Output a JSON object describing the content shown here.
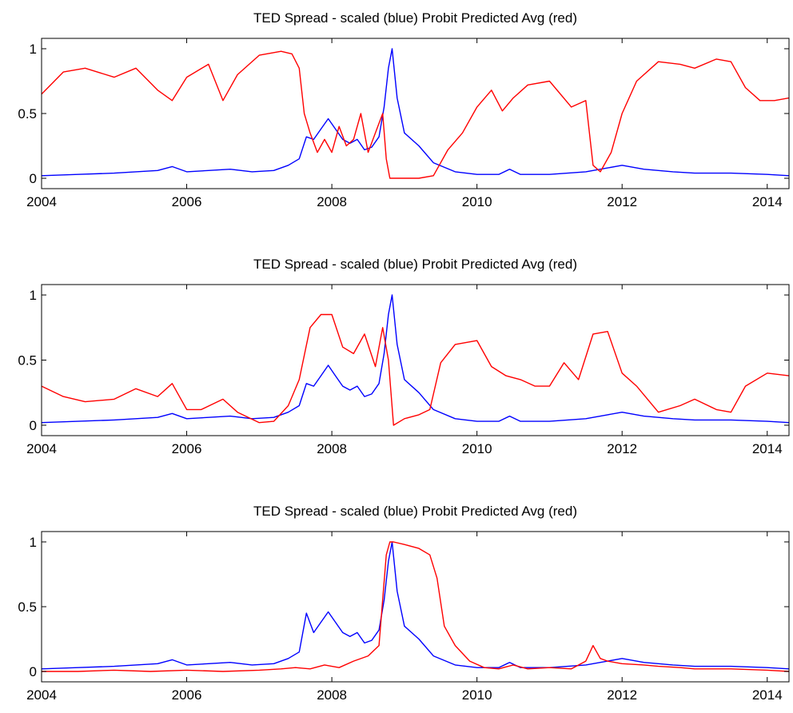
{
  "chart_data": [
    {
      "type": "line",
      "title": "TED Spread - scaled (blue) Probit Predicted Avg (red)",
      "xlabel": "",
      "ylabel": "",
      "xlim": [
        2004,
        2014.3
      ],
      "ylim": [
        -0.08,
        1.08
      ],
      "x_ticks": [
        2004,
        2006,
        2008,
        2010,
        2012,
        2014
      ],
      "y_ticks": [
        0,
        0.5,
        1
      ],
      "y_tick_labels": [
        "0",
        "0.5",
        "1"
      ],
      "grid": false,
      "series": [
        {
          "color": "#0000ff",
          "x": [
            2004.0,
            2004.5,
            2005.0,
            2005.3,
            2005.6,
            2005.8,
            2006.0,
            2006.3,
            2006.6,
            2006.9,
            2007.2,
            2007.4,
            2007.55,
            2007.65,
            2007.75,
            2007.85,
            2007.95,
            2008.05,
            2008.15,
            2008.25,
            2008.35,
            2008.45,
            2008.55,
            2008.65,
            2008.72,
            2008.78,
            2008.83,
            2008.9,
            2009.0,
            2009.2,
            2009.4,
            2009.7,
            2010.0,
            2010.3,
            2010.45,
            2010.6,
            2011.0,
            2011.5,
            2011.8,
            2012.0,
            2012.3,
            2012.7,
            2013.0,
            2013.5,
            2014.0,
            2014.3
          ],
          "y": [
            0.02,
            0.03,
            0.04,
            0.05,
            0.06,
            0.09,
            0.05,
            0.06,
            0.07,
            0.05,
            0.06,
            0.1,
            0.15,
            0.32,
            0.3,
            0.38,
            0.46,
            0.38,
            0.3,
            0.27,
            0.3,
            0.22,
            0.24,
            0.32,
            0.55,
            0.85,
            1.0,
            0.62,
            0.35,
            0.25,
            0.12,
            0.05,
            0.03,
            0.03,
            0.07,
            0.03,
            0.03,
            0.05,
            0.08,
            0.1,
            0.07,
            0.05,
            0.04,
            0.04,
            0.03,
            0.02
          ]
        },
        {
          "color": "#ff0000",
          "x": [
            2004.0,
            2004.3,
            2004.6,
            2005.0,
            2005.3,
            2005.6,
            2005.8,
            2006.0,
            2006.3,
            2006.5,
            2006.7,
            2007.0,
            2007.3,
            2007.45,
            2007.55,
            2007.62,
            2007.7,
            2007.8,
            2007.9,
            2008.0,
            2008.1,
            2008.2,
            2008.3,
            2008.4,
            2008.5,
            2008.6,
            2008.7,
            2008.75,
            2008.8,
            2009.0,
            2009.2,
            2009.4,
            2009.6,
            2009.8,
            2010.0,
            2010.2,
            2010.35,
            2010.5,
            2010.7,
            2011.0,
            2011.3,
            2011.5,
            2011.6,
            2011.7,
            2011.85,
            2012.0,
            2012.2,
            2012.5,
            2012.8,
            2013.0,
            2013.3,
            2013.5,
            2013.7,
            2013.9,
            2014.1,
            2014.3
          ],
          "y": [
            0.65,
            0.82,
            0.85,
            0.78,
            0.85,
            0.68,
            0.6,
            0.78,
            0.88,
            0.6,
            0.8,
            0.95,
            0.98,
            0.96,
            0.85,
            0.5,
            0.35,
            0.2,
            0.3,
            0.2,
            0.4,
            0.25,
            0.3,
            0.5,
            0.2,
            0.35,
            0.5,
            0.15,
            0.0,
            0.0,
            0.0,
            0.02,
            0.22,
            0.35,
            0.55,
            0.68,
            0.52,
            0.62,
            0.72,
            0.75,
            0.55,
            0.6,
            0.1,
            0.05,
            0.2,
            0.5,
            0.75,
            0.9,
            0.88,
            0.85,
            0.92,
            0.9,
            0.7,
            0.6,
            0.6,
            0.62
          ]
        }
      ]
    },
    {
      "type": "line",
      "title": "TED Spread - scaled (blue) Probit Predicted Avg (red)",
      "xlabel": "",
      "ylabel": "",
      "xlim": [
        2004,
        2014.3
      ],
      "ylim": [
        -0.08,
        1.08
      ],
      "x_ticks": [
        2004,
        2006,
        2008,
        2010,
        2012,
        2014
      ],
      "y_ticks": [
        0,
        0.5,
        1
      ],
      "y_tick_labels": [
        "0",
        "0.5",
        "1"
      ],
      "grid": false,
      "series": [
        {
          "color": "#0000ff",
          "x": [
            2004.0,
            2004.5,
            2005.0,
            2005.3,
            2005.6,
            2005.8,
            2006.0,
            2006.3,
            2006.6,
            2006.9,
            2007.2,
            2007.4,
            2007.55,
            2007.65,
            2007.75,
            2007.85,
            2007.95,
            2008.05,
            2008.15,
            2008.25,
            2008.35,
            2008.45,
            2008.55,
            2008.65,
            2008.72,
            2008.78,
            2008.83,
            2008.9,
            2009.0,
            2009.2,
            2009.4,
            2009.7,
            2010.0,
            2010.3,
            2010.45,
            2010.6,
            2011.0,
            2011.5,
            2011.8,
            2012.0,
            2012.3,
            2012.7,
            2013.0,
            2013.5,
            2014.0,
            2014.3
          ],
          "y": [
            0.02,
            0.03,
            0.04,
            0.05,
            0.06,
            0.09,
            0.05,
            0.06,
            0.07,
            0.05,
            0.06,
            0.1,
            0.15,
            0.32,
            0.3,
            0.38,
            0.46,
            0.38,
            0.3,
            0.27,
            0.3,
            0.22,
            0.24,
            0.32,
            0.55,
            0.85,
            1.0,
            0.62,
            0.35,
            0.25,
            0.12,
            0.05,
            0.03,
            0.03,
            0.07,
            0.03,
            0.03,
            0.05,
            0.08,
            0.1,
            0.07,
            0.05,
            0.04,
            0.04,
            0.03,
            0.02
          ]
        },
        {
          "color": "#ff0000",
          "x": [
            2004.0,
            2004.3,
            2004.6,
            2005.0,
            2005.3,
            2005.6,
            2005.8,
            2006.0,
            2006.2,
            2006.5,
            2006.7,
            2007.0,
            2007.2,
            2007.4,
            2007.55,
            2007.7,
            2007.85,
            2008.0,
            2008.15,
            2008.3,
            2008.45,
            2008.6,
            2008.7,
            2008.78,
            2008.85,
            2009.0,
            2009.2,
            2009.35,
            2009.5,
            2009.7,
            2010.0,
            2010.2,
            2010.4,
            2010.6,
            2010.8,
            2011.0,
            2011.2,
            2011.4,
            2011.6,
            2011.8,
            2012.0,
            2012.2,
            2012.5,
            2012.8,
            2013.0,
            2013.3,
            2013.5,
            2013.7,
            2014.0,
            2014.3
          ],
          "y": [
            0.3,
            0.22,
            0.18,
            0.2,
            0.28,
            0.22,
            0.32,
            0.12,
            0.12,
            0.2,
            0.1,
            0.02,
            0.03,
            0.15,
            0.35,
            0.75,
            0.85,
            0.85,
            0.6,
            0.55,
            0.7,
            0.45,
            0.75,
            0.5,
            0.0,
            0.05,
            0.08,
            0.12,
            0.48,
            0.62,
            0.65,
            0.45,
            0.38,
            0.35,
            0.3,
            0.3,
            0.48,
            0.35,
            0.7,
            0.72,
            0.4,
            0.3,
            0.1,
            0.15,
            0.2,
            0.12,
            0.1,
            0.3,
            0.4,
            0.38
          ]
        }
      ]
    },
    {
      "type": "line",
      "title": "TED Spread - scaled (blue) Probit Predicted Avg (red)",
      "xlabel": "",
      "ylabel": "",
      "xlim": [
        2004,
        2014.3
      ],
      "ylim": [
        -0.08,
        1.08
      ],
      "x_ticks": [
        2004,
        2006,
        2008,
        2010,
        2012,
        2014
      ],
      "y_ticks": [
        0,
        0.5,
        1
      ],
      "y_tick_labels": [
        "0",
        "0.5",
        "1"
      ],
      "grid": false,
      "series": [
        {
          "color": "#0000ff",
          "x": [
            2004.0,
            2004.5,
            2005.0,
            2005.3,
            2005.6,
            2005.8,
            2006.0,
            2006.3,
            2006.6,
            2006.9,
            2007.2,
            2007.4,
            2007.55,
            2007.65,
            2007.75,
            2007.85,
            2007.95,
            2008.05,
            2008.15,
            2008.25,
            2008.35,
            2008.45,
            2008.55,
            2008.65,
            2008.72,
            2008.78,
            2008.83,
            2008.9,
            2009.0,
            2009.2,
            2009.4,
            2009.7,
            2010.0,
            2010.3,
            2010.45,
            2010.6,
            2011.0,
            2011.5,
            2011.8,
            2012.0,
            2012.3,
            2012.7,
            2013.0,
            2013.5,
            2014.0,
            2014.3
          ],
          "y": [
            0.02,
            0.03,
            0.04,
            0.05,
            0.06,
            0.09,
            0.05,
            0.06,
            0.07,
            0.05,
            0.06,
            0.1,
            0.15,
            0.45,
            0.3,
            0.38,
            0.46,
            0.38,
            0.3,
            0.27,
            0.3,
            0.22,
            0.24,
            0.32,
            0.55,
            0.85,
            1.0,
            0.62,
            0.35,
            0.25,
            0.12,
            0.05,
            0.03,
            0.03,
            0.07,
            0.03,
            0.03,
            0.05,
            0.08,
            0.1,
            0.07,
            0.05,
            0.04,
            0.04,
            0.03,
            0.02
          ]
        },
        {
          "color": "#ff0000",
          "x": [
            2004.0,
            2004.5,
            2005.0,
            2005.5,
            2006.0,
            2006.5,
            2007.0,
            2007.3,
            2007.5,
            2007.7,
            2007.9,
            2008.1,
            2008.3,
            2008.5,
            2008.65,
            2008.75,
            2008.8,
            2008.85,
            2009.0,
            2009.2,
            2009.35,
            2009.45,
            2009.55,
            2009.7,
            2009.9,
            2010.1,
            2010.3,
            2010.5,
            2010.7,
            2011.0,
            2011.3,
            2011.5,
            2011.6,
            2011.7,
            2011.8,
            2012.0,
            2012.3,
            2012.5,
            2012.8,
            2013.0,
            2013.5,
            2014.0,
            2014.3
          ],
          "y": [
            0.0,
            0.0,
            0.01,
            0.0,
            0.01,
            0.0,
            0.01,
            0.02,
            0.03,
            0.02,
            0.05,
            0.03,
            0.08,
            0.12,
            0.2,
            0.9,
            1.0,
            1.0,
            0.98,
            0.95,
            0.9,
            0.72,
            0.35,
            0.2,
            0.08,
            0.03,
            0.02,
            0.05,
            0.02,
            0.03,
            0.02,
            0.08,
            0.2,
            0.1,
            0.08,
            0.06,
            0.05,
            0.04,
            0.03,
            0.02,
            0.02,
            0.01,
            0.0
          ]
        }
      ]
    }
  ]
}
